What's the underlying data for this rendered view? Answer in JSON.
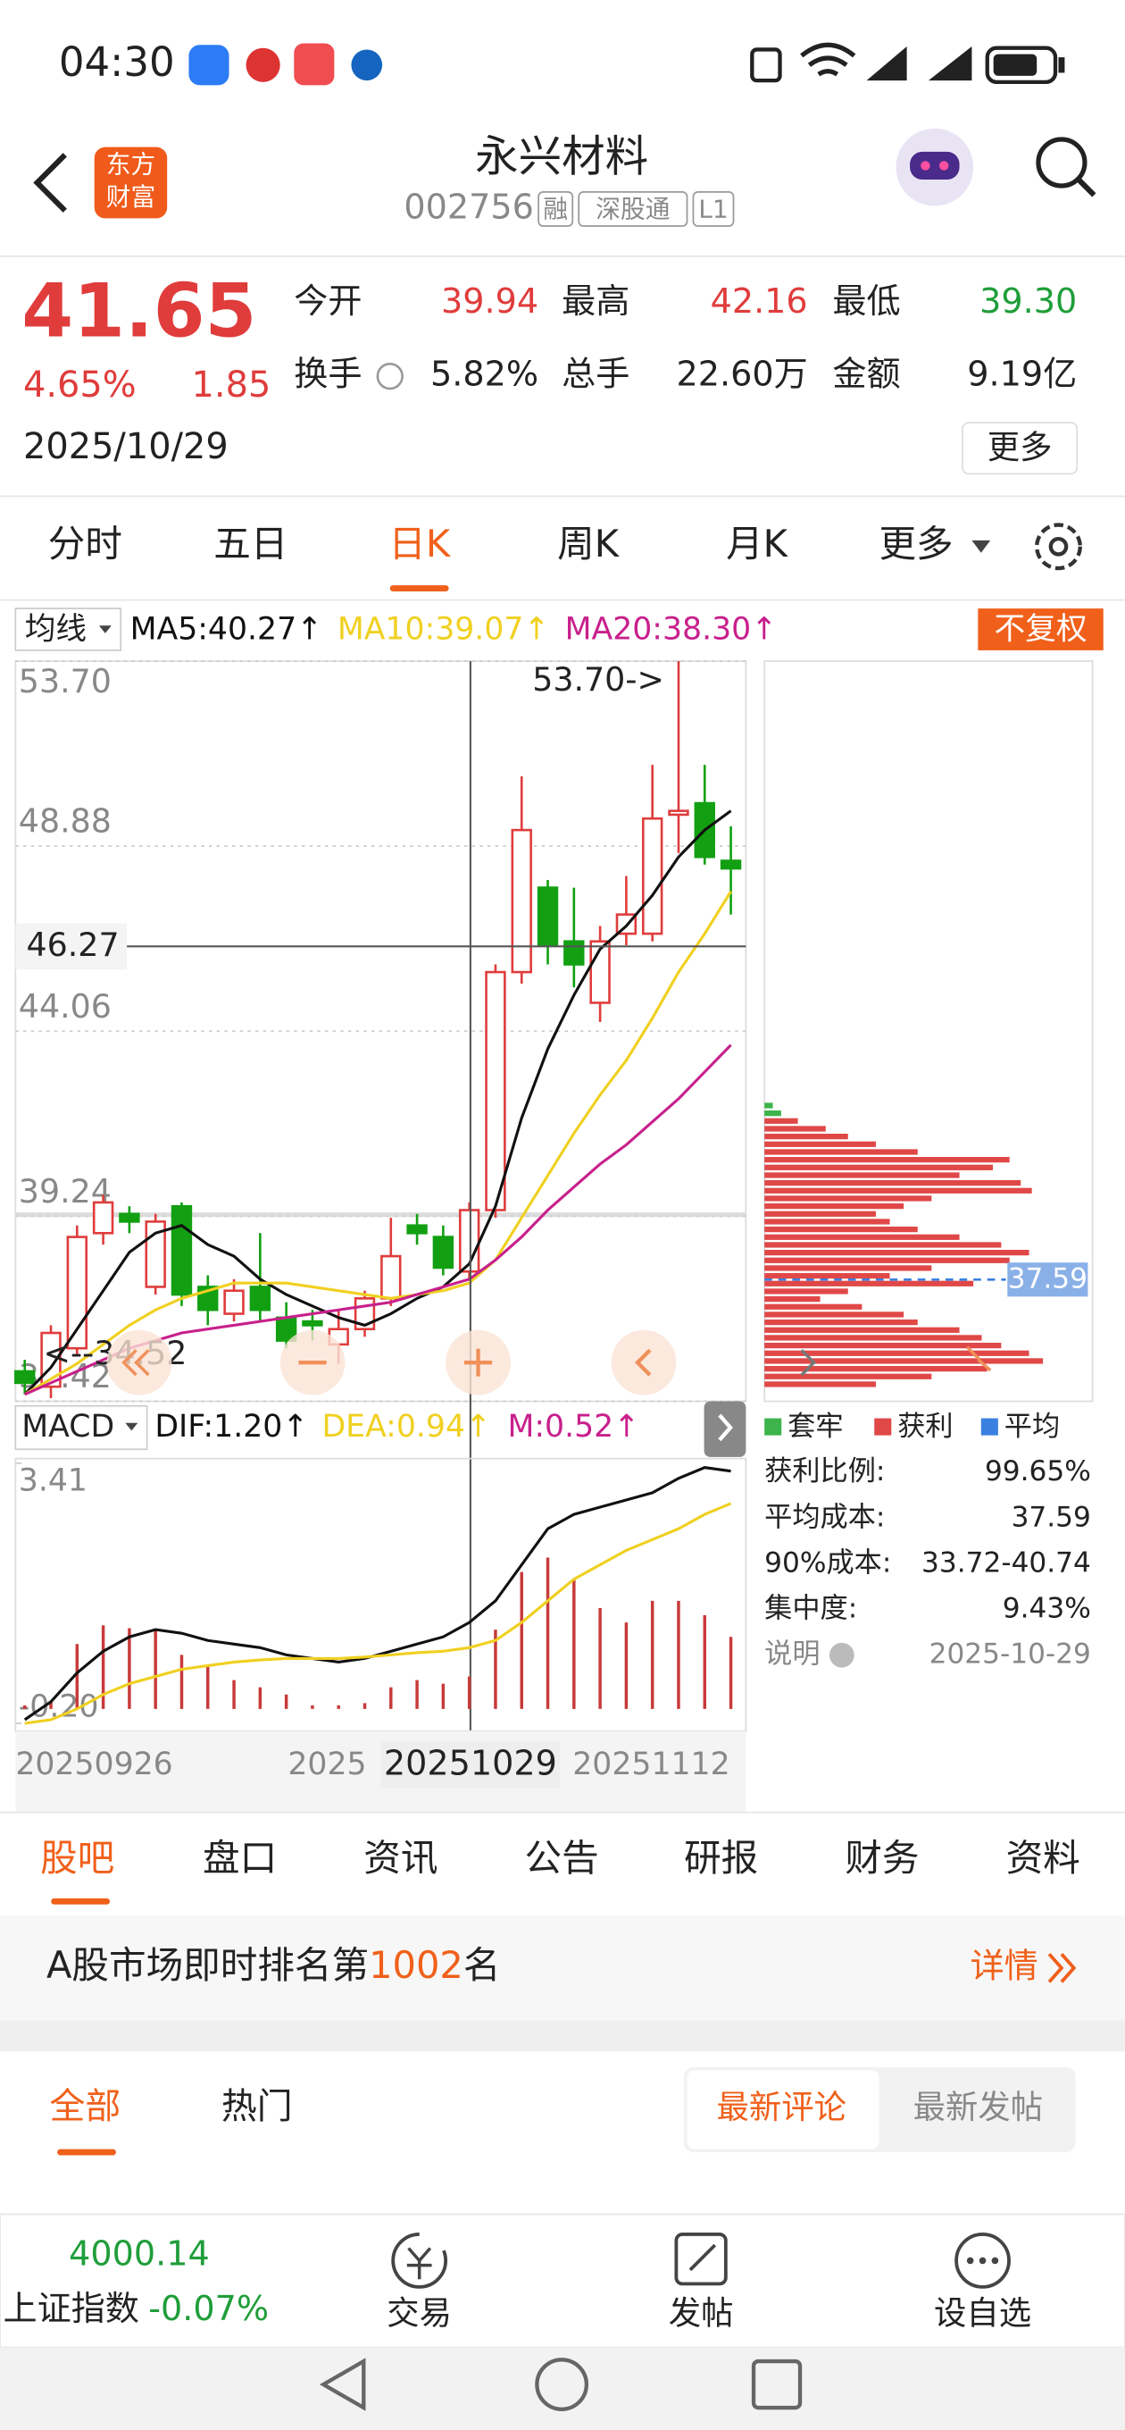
{
  "status_bar": {
    "time": "04:30"
  },
  "header": {
    "logo": [
      "东方",
      "财富"
    ],
    "title": "永兴材料",
    "code": "002756",
    "badges": [
      "融",
      "深股通",
      "L1"
    ]
  },
  "quote": {
    "price": "41.65",
    "change_pct": "4.65%",
    "change": "1.85",
    "date": "2025/10/29",
    "fields": [
      {
        "label": "今开",
        "value": "39.94"
      },
      {
        "label": "最高",
        "value": "42.16"
      },
      {
        "label": "最低",
        "value": "39.30"
      },
      {
        "label": "换手",
        "value": "5.82%"
      },
      {
        "label": "总手",
        "value": "22.60万"
      },
      {
        "label": "金额",
        "value": "9.19亿"
      }
    ],
    "more": "更多"
  },
  "period_tabs": [
    "分时",
    "五日",
    "日K",
    "周K",
    "月K",
    "更多"
  ],
  "indicator_bar": {
    "selector": "均线",
    "adjust": "不复权"
  },
  "kline_chart": {
    "type": "candlestick",
    "ylim": [
      34.42,
      53.7
    ],
    "yticks": [
      {
        "value": 53.7,
        "label": "53.70"
      },
      48.88,
      44.06,
      39.24,
      34.42
    ],
    "grid": true,
    "up_color": "#e03c3c",
    "down_color": "#12a012",
    "open": [
      35.2,
      34.8,
      35.8,
      38.8,
      39.3,
      37.4,
      39.5,
      37.4,
      36.7,
      37.4,
      36.6,
      36.5,
      35.9,
      36.3,
      37.1,
      39.0,
      38.7,
      37.8,
      39.4,
      45.6,
      47.8,
      46.4,
      44.8,
      46.6,
      46.6,
      49.7,
      50.0,
      48.5
    ],
    "high": [
      35.5,
      36.4,
      39.0,
      39.8,
      39.5,
      39.3,
      39.6,
      37.7,
      37.6,
      38.8,
      37.0,
      36.8,
      36.8,
      37.3,
      39.2,
      39.3,
      39.0,
      39.6,
      45.8,
      50.7,
      48.0,
      47.8,
      46.8,
      48.1,
      51.0,
      53.7,
      51.0,
      49.4
    ],
    "low": [
      34.6,
      34.5,
      35.6,
      38.5,
      38.8,
      37.2,
      36.9,
      36.4,
      36.5,
      36.5,
      35.8,
      36.0,
      35.4,
      36.1,
      36.9,
      38.5,
      37.7,
      37.6,
      39.2,
      45.3,
      45.8,
      45.2,
      44.3,
      46.3,
      46.4,
      48.7,
      48.4,
      47.1
    ],
    "close": [
      34.9,
      36.2,
      38.7,
      39.6,
      39.1,
      39.1,
      37.2,
      36.8,
      37.3,
      36.8,
      36.0,
      36.4,
      36.3,
      37.1,
      38.2,
      38.8,
      37.9,
      39.4,
      45.6,
      49.3,
      46.3,
      45.8,
      46.4,
      47.1,
      49.6,
      49.8,
      48.6,
      48.3
    ],
    "series": [
      {
        "label": "MA5:40.27↑",
        "color": "#111111",
        "values": [
          34.6,
          35.3,
          36.3,
          37.3,
          38.3,
          38.8,
          39.0,
          38.5,
          38.2,
          37.6,
          37.2,
          36.9,
          36.6,
          36.4,
          36.7,
          37.1,
          37.4,
          38.0,
          39.5,
          41.8,
          43.6,
          45.0,
          46.2,
          46.8,
          47.6,
          48.6,
          49.3,
          49.8
        ]
      },
      {
        "label": "MA10:39.07↑",
        "color": "#f0d020",
        "values": [
          34.6,
          35.0,
          35.4,
          35.9,
          36.4,
          36.8,
          37.1,
          37.3,
          37.5,
          37.5,
          37.5,
          37.4,
          37.3,
          37.2,
          37.1,
          37.2,
          37.3,
          37.5,
          38.1,
          39.2,
          40.3,
          41.4,
          42.4,
          43.3,
          44.4,
          45.6,
          46.6,
          47.7
        ]
      },
      {
        "label": "MA20:38.30↑",
        "color": "#c8208c",
        "values": [
          34.6,
          34.9,
          35.2,
          35.5,
          35.8,
          36.0,
          36.2,
          36.3,
          36.4,
          36.5,
          36.6,
          36.7,
          36.8,
          36.9,
          37.0,
          37.2,
          37.4,
          37.6,
          38.1,
          38.7,
          39.4,
          40.0,
          40.6,
          41.1,
          41.7,
          42.3,
          43.0,
          43.7
        ]
      }
    ],
    "max_label": "53.70->",
    "min_label": "<--34.52",
    "crosshair": 46.27
  },
  "chip_distribution": {
    "values": [
      3,
      6,
      12,
      22,
      30,
      40,
      55,
      88,
      82,
      70,
      92,
      96,
      60,
      50,
      40,
      45,
      55,
      70,
      85,
      95,
      88,
      60,
      45,
      75,
      30,
      20,
      35,
      50,
      55,
      70,
      78,
      85,
      95,
      100,
      80,
      60,
      40
    ],
    "trapped_rows": 2,
    "avg_cost": 37.59,
    "legend": [
      {
        "name": "套牢",
        "color": "#3cb44b"
      },
      {
        "name": "获利",
        "color": "#e04848"
      },
      {
        "name": "平均",
        "color": "#3a80e0"
      }
    ],
    "stats": [
      {
        "label": "获利比例:",
        "value": "99.65%"
      },
      {
        "label": "平均成本:",
        "value": "37.59"
      },
      {
        "label": "90%成本:",
        "value": "33.72-40.74"
      },
      {
        "label": "集中度:",
        "value": "9.43%"
      },
      {
        "label": "说明",
        "value": "2025-10-29"
      }
    ]
  },
  "macd_chart": {
    "selector": "MACD",
    "ylim": [
      -0.2,
      3.41
    ],
    "yticks": [
      3.41,
      {
        "value": -0.2,
        "label": "-0.20"
      }
    ],
    "histogram": {
      "label": "M:0.52↑",
      "label_color": "#c8208c",
      "color": "#c83a3a",
      "values": [
        0.05,
        0.1,
        0.9,
        1.16,
        1.12,
        1.1,
        0.75,
        0.6,
        0.4,
        0.3,
        0.2,
        0.05,
        0.05,
        0.08,
        0.3,
        0.4,
        0.35,
        0.45,
        1.1,
        1.9,
        2.1,
        1.8,
        1.4,
        1.2,
        1.5,
        1.5,
        1.3,
        1.0
      ]
    },
    "series": [
      {
        "label": "DIF:1.20↑",
        "color": "#111111",
        "values": [
          -0.15,
          0.1,
          0.5,
          0.8,
          1.0,
          1.1,
          1.05,
          0.95,
          0.9,
          0.85,
          0.75,
          0.7,
          0.65,
          0.7,
          0.8,
          0.9,
          1.0,
          1.2,
          1.5,
          2.0,
          2.5,
          2.7,
          2.8,
          2.9,
          3.0,
          3.2,
          3.35,
          3.3
        ]
      },
      {
        "label": "DEA:0.94↑",
        "color": "#f0d020",
        "values": [
          -0.2,
          -0.15,
          0.0,
          0.2,
          0.35,
          0.45,
          0.55,
          0.6,
          0.65,
          0.68,
          0.7,
          0.7,
          0.7,
          0.72,
          0.75,
          0.78,
          0.8,
          0.85,
          0.95,
          1.2,
          1.5,
          1.8,
          2.0,
          2.2,
          2.35,
          2.5,
          2.7,
          2.85
        ]
      }
    ],
    "dates": [
      "20250926",
      "2025",
      "20251029",
      "20251112"
    ]
  },
  "section_tabs": [
    "股吧",
    "盘口",
    "资讯",
    "公告",
    "研报",
    "财务",
    "资料"
  ],
  "rank": {
    "prefix": "A股市场即时排名第",
    "number": "1002",
    "suffix": "名",
    "link": "详情"
  },
  "filters": {
    "tabs": [
      "全部",
      "热门"
    ],
    "sort": [
      "最新评论",
      "最新发帖"
    ]
  },
  "bottom_bar": {
    "index_value": "4000.14",
    "index_name": "上证指数",
    "index_change": "-0.07%",
    "actions": [
      "交易",
      "发帖",
      "设自选"
    ]
  }
}
